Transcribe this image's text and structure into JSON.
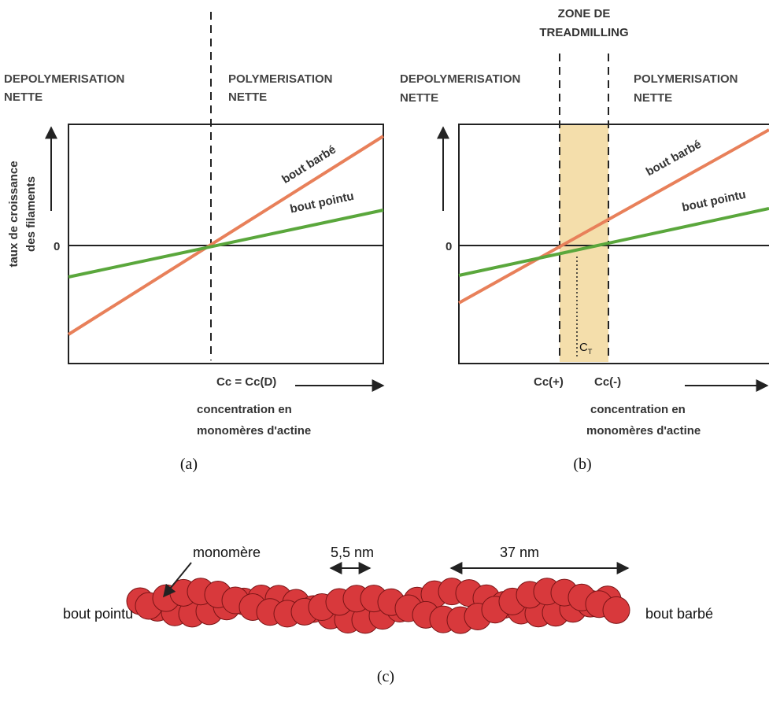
{
  "panel_a": {
    "left_label": [
      "DEPOLYMERISATION",
      "NETTE"
    ],
    "right_label": [
      "POLYMERISATION",
      "NETTE"
    ],
    "y_label": [
      "taux de croissance",
      "des filaments"
    ],
    "zero": "0",
    "barbed": "bout barbé",
    "pointed": "bout pointu",
    "cc": "Cc = Cc(D)",
    "x_label": [
      "concentration en",
      "monomères d'actine"
    ],
    "caption": "(a)"
  },
  "panel_b": {
    "zone_label": [
      "ZONE DE",
      "TREADMILLING"
    ],
    "left_label": [
      "DEPOLYMERISATION",
      "NETTE"
    ],
    "right_label": [
      "POLYMERISATION",
      "NETTE"
    ],
    "zero": "0",
    "barbed": "bout barbé",
    "pointed": "bout pointu",
    "ct": [
      "C",
      "T"
    ],
    "cc_plus": "Cc(+)",
    "cc_minus": "Cc(-)",
    "x_label": [
      "concentration en",
      "monomères d'actine"
    ],
    "caption": "(b)"
  },
  "panel_c": {
    "monomer": "monomère",
    "spacing": "5,5 nm",
    "pitch": "37 nm",
    "pointed_end": "bout pointu",
    "barbed_end": "bout barbé",
    "caption": "(c)"
  }
}
